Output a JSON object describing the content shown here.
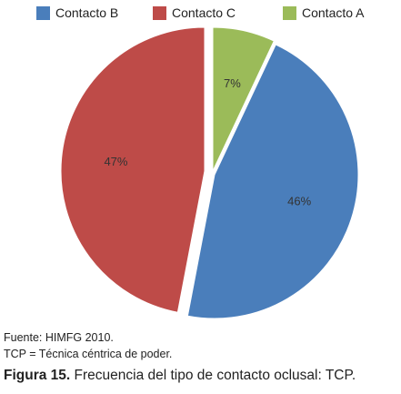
{
  "chart_data": {
    "type": "pie",
    "slices": [
      {
        "name": "Contacto A",
        "value": 7,
        "label": "7%",
        "color": "#9bbb59"
      },
      {
        "name": "Contacto B",
        "value": 46,
        "label": "46%",
        "color": "#4a7ebb"
      },
      {
        "name": "Contacto C",
        "value": 47,
        "label": "47%",
        "color": "#be4b48"
      }
    ],
    "legend": {
      "placement": "top",
      "order": [
        "Contacto B",
        "Contacto C",
        "Contacto A"
      ]
    },
    "exploded": true
  },
  "notes": {
    "source": "Fuente: HIMFG 2010.",
    "abbrev": "TCP = Técnica céntrica de poder."
  },
  "caption": {
    "label": "Figura 15.",
    "text": " Frecuencia del tipo de contacto oclusal: TCP."
  }
}
